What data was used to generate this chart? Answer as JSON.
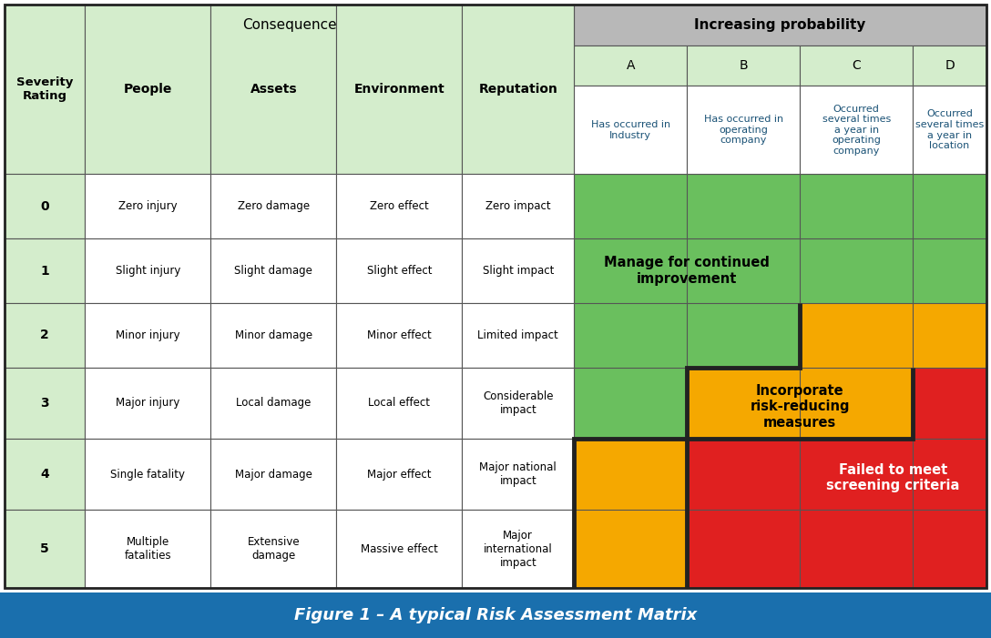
{
  "title": "Figure 1 – A typical Risk Assessment Matrix",
  "title_bg": "#1a6fad",
  "title_color": "#ffffff",
  "header_bg": "#b8b8b8",
  "cell_bg_left": "#d4edcc",
  "cell_bg_prob_letter": "#d4edcc",
  "cell_bg_white": "#ffffff",
  "green_color": "#6abf5e",
  "yellow_color": "#f5a800",
  "red_color": "#e02020",
  "border_color": "#222222",
  "thin_border": "#555555",
  "col_consequence_headers": [
    "People",
    "Assets",
    "Environment",
    "Reputation"
  ],
  "col_probability_headers": [
    "A",
    "B",
    "C",
    "D"
  ],
  "probability_descriptions": [
    "Has occurred in\nIndustry",
    "Has occurred in\noperating\ncompany",
    "Occurred\nseveral times\na year in\noperating\ncompany",
    "Occurred\nseveral times\na year in\nlocation"
  ],
  "consequence_data": [
    [
      "Zero injury",
      "Zero damage",
      "Zero effect",
      "Zero impact"
    ],
    [
      "Slight injury",
      "Slight damage",
      "Slight effect",
      "Slight impact"
    ],
    [
      "Minor injury",
      "Minor damage",
      "Minor effect",
      "Limited impact"
    ],
    [
      "Major injury",
      "Local damage",
      "Local effect",
      "Considerable\nimpact"
    ],
    [
      "Single fatality",
      "Major damage",
      "Major effect",
      "Major national\nimpact"
    ],
    [
      "Multiple\nfatalities",
      "Extensive\ndamage",
      "Massive effect",
      "Major\ninternational\nimpact"
    ]
  ],
  "risk_map": {
    "0": [
      "green",
      "green",
      "green",
      "green"
    ],
    "1": [
      "green",
      "green",
      "green",
      "green"
    ],
    "2": [
      "green",
      "green",
      "yellow",
      "yellow"
    ],
    "3": [
      "green",
      "yellow",
      "yellow",
      "red"
    ],
    "4": [
      "yellow",
      "red",
      "red",
      "red"
    ],
    "5": [
      "yellow",
      "red",
      "red",
      "red"
    ]
  },
  "green_label": "Manage for continued\nimprovement",
  "yellow_label": "Incorporate\nrisk-reducing\nmeasures",
  "red_label": "Failed to meet\nscreening criteria"
}
